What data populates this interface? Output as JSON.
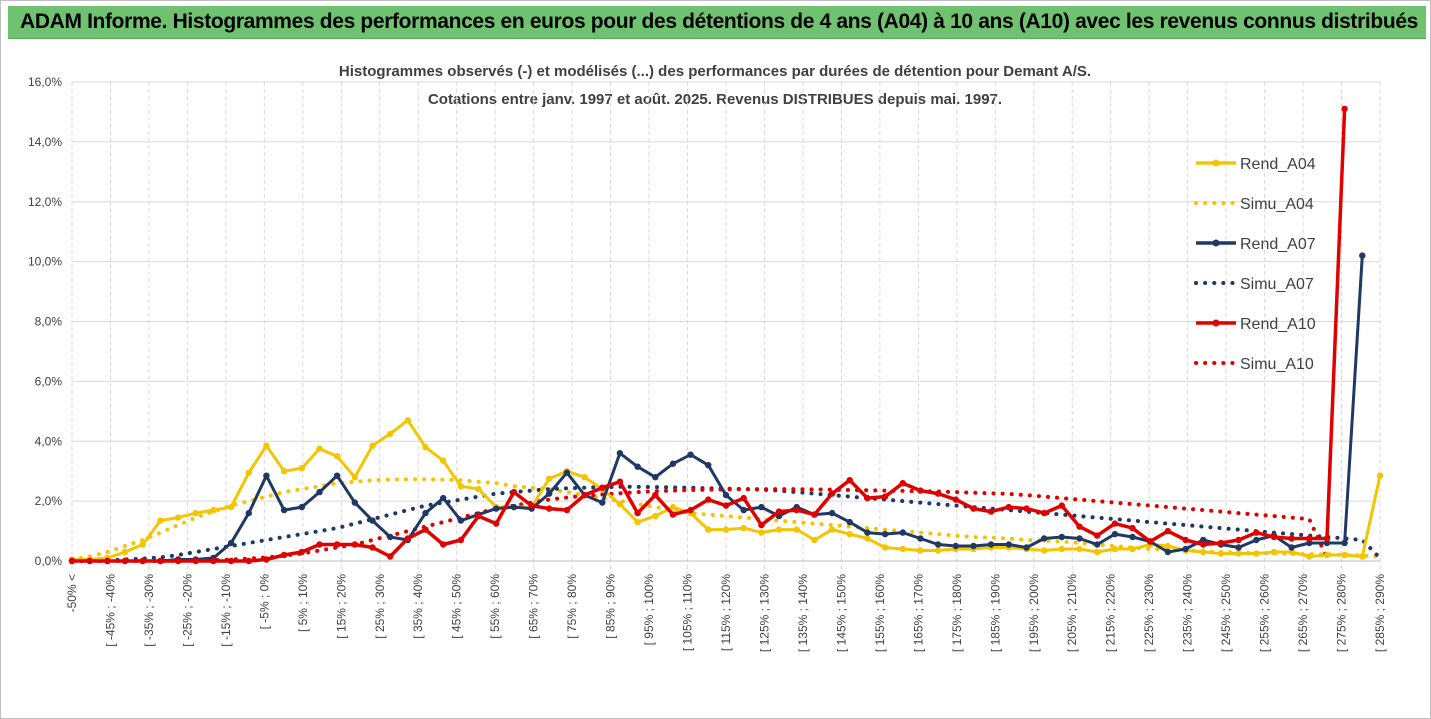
{
  "banner": {
    "title": "ADAM Informe. Histogrammes des performances en euros pour des détentions de 4 ans (A04) à 10 ans (A10) avec les revenus connus distribués"
  },
  "colors": {
    "a04": "#f5c400",
    "a07": "#1f3864",
    "a10": "#e00000",
    "banner": "#6fc26f",
    "grid": "#d0d0d0"
  },
  "chart_data": {
    "type": "line",
    "title": "Histogrammes observés (-) et modélisés (...) des performances par durées de détention pour Demant A/S.",
    "subtitle": "Cotations entre janv. 1997 et août. 2025. Revenus DISTRIBUES depuis mai. 1997.",
    "ylim": [
      0,
      16
    ],
    "yticks": [
      "0,0%",
      "2,0%",
      "4,0%",
      "6,0%",
      "8,0%",
      "10,0%",
      "12,0%",
      "14,0%",
      "16,0%"
    ],
    "xticklabels": [
      "-50% <",
      "[ -45% ; -40%",
      "[ -35% ; -30%",
      "[ -25% ; -20%",
      "[ -15% ; -10%",
      "[ -5% ; 0%",
      "[ 5% ; 10%",
      "[ 15% ; 20%",
      "[ 25% ; 30%",
      "[ 35% ; 40%",
      "[ 45% ; 50%",
      "[ 55% ; 60%",
      "[ 65% ; 70%",
      "[ 75% ; 80%",
      "[ 85% ; 90%",
      "[ 95% ; 100%",
      "[ 105% ; 110%",
      "[ 115% ; 120%",
      "[ 125% ; 130%",
      "[ 135% ; 140%",
      "[ 145% ; 150%",
      "[ 155% ; 160%",
      "[ 165% ; 170%",
      "[ 175% ; 180%",
      "[ 185% ; 190%",
      "[ 195% ; 200%",
      "[ 205% ; 210%",
      "[ 215% ; 220%",
      "[ 225% ; 230%",
      "[ 235% ; 240%",
      "[ 245% ; 250%",
      "[ 255% ; 260%",
      "[ 265% ; 270%",
      "[ 275% ; 280%",
      "[ 285% ; 290%"
    ],
    "grid": true,
    "legend_position": "right",
    "series": [
      {
        "name": "Rend_A04",
        "style": "solid",
        "values": [
          0.05,
          0.05,
          0.1,
          0.3,
          0.55,
          1.35,
          1.45,
          1.6,
          1.7,
          1.8,
          2.95,
          3.85,
          3.0,
          3.1,
          3.75,
          3.5,
          2.8,
          3.85,
          4.25,
          4.7,
          3.8,
          3.35,
          2.5,
          2.4,
          1.8,
          1.8,
          1.8,
          2.75,
          3.0,
          2.8,
          2.4,
          1.9,
          1.3,
          1.5,
          1.8,
          1.6,
          1.05,
          1.05,
          1.1,
          0.95,
          1.05,
          1.05,
          0.7,
          1.05,
          0.9,
          0.75,
          0.45,
          0.4,
          0.35,
          0.35,
          0.4,
          0.4,
          0.45,
          0.45,
          0.4,
          0.35,
          0.4,
          0.4,
          0.3,
          0.4,
          0.4,
          0.55,
          0.5,
          0.35,
          0.3,
          0.25,
          0.25,
          0.25,
          0.3,
          0.3,
          0.15,
          0.2,
          0.2,
          0.15,
          2.85
        ]
      },
      {
        "name": "Simu_A04",
        "style": "dotted",
        "values": [
          0.05,
          0.15,
          0.3,
          0.5,
          0.7,
          0.95,
          1.2,
          1.45,
          1.65,
          1.85,
          2.0,
          2.15,
          2.3,
          2.4,
          2.5,
          2.6,
          2.65,
          2.7,
          2.72,
          2.73,
          2.73,
          2.72,
          2.7,
          2.65,
          2.6,
          2.5,
          2.45,
          2.4,
          2.3,
          2.2,
          2.1,
          2.0,
          1.9,
          1.8,
          1.7,
          1.6,
          1.55,
          1.5,
          1.45,
          1.4,
          1.35,
          1.3,
          1.25,
          1.2,
          1.15,
          1.1,
          1.05,
          1.0,
          0.95,
          0.9,
          0.85,
          0.8,
          0.78,
          0.75,
          0.7,
          0.68,
          0.65,
          0.6,
          0.55,
          0.5,
          0.45,
          0.4,
          0.38,
          0.35,
          0.32,
          0.3,
          0.28,
          0.26,
          0.25,
          0.24,
          0.23,
          0.22,
          0.2,
          0.18,
          0.15
        ]
      },
      {
        "name": "Rend_A07",
        "style": "solid",
        "values": [
          0.0,
          0.0,
          0.0,
          0.0,
          0.0,
          0.0,
          0.05,
          0.05,
          0.1,
          0.6,
          1.6,
          2.85,
          1.7,
          1.8,
          2.3,
          2.85,
          1.95,
          1.35,
          0.8,
          0.7,
          1.6,
          2.1,
          1.35,
          1.55,
          1.75,
          1.8,
          1.75,
          2.25,
          2.95,
          2.2,
          1.95,
          3.6,
          3.15,
          2.8,
          3.25,
          3.55,
          3.2,
          2.2,
          1.7,
          1.8,
          1.5,
          1.8,
          1.55,
          1.6,
          1.3,
          0.95,
          0.9,
          0.95,
          0.75,
          0.55,
          0.5,
          0.5,
          0.55,
          0.55,
          0.45,
          0.75,
          0.8,
          0.75,
          0.55,
          0.9,
          0.8,
          0.65,
          0.3,
          0.4,
          0.7,
          0.55,
          0.45,
          0.7,
          0.85,
          0.45,
          0.6,
          0.6,
          0.6,
          10.2
        ]
      },
      {
        "name": "Simu_A07",
        "style": "dotted",
        "values": [
          0.0,
          0.0,
          0.02,
          0.05,
          0.08,
          0.12,
          0.2,
          0.3,
          0.4,
          0.5,
          0.6,
          0.7,
          0.8,
          0.9,
          1.0,
          1.1,
          1.25,
          1.4,
          1.55,
          1.7,
          1.85,
          1.95,
          2.05,
          2.15,
          2.25,
          2.3,
          2.35,
          2.4,
          2.43,
          2.45,
          2.47,
          2.48,
          2.48,
          2.47,
          2.46,
          2.45,
          2.43,
          2.42,
          2.4,
          2.38,
          2.35,
          2.3,
          2.25,
          2.2,
          2.15,
          2.1,
          2.05,
          2.0,
          1.95,
          1.9,
          1.85,
          1.8,
          1.75,
          1.7,
          1.65,
          1.6,
          1.55,
          1.5,
          1.45,
          1.4,
          1.35,
          1.3,
          1.25,
          1.2,
          1.15,
          1.1,
          1.05,
          1.0,
          0.95,
          0.9,
          0.85,
          0.8,
          0.75,
          0.7,
          0.1
        ]
      },
      {
        "name": "Rend_A10",
        "style": "solid",
        "values": [
          0.0,
          0.0,
          0.0,
          0.0,
          0.0,
          0.0,
          0.0,
          0.0,
          0.0,
          0.0,
          0.0,
          0.05,
          0.2,
          0.3,
          0.55,
          0.55,
          0.55,
          0.45,
          0.15,
          0.75,
          1.05,
          0.55,
          0.7,
          1.5,
          1.25,
          2.3,
          1.85,
          1.75,
          1.7,
          2.2,
          2.45,
          2.65,
          1.6,
          2.2,
          1.55,
          1.7,
          2.05,
          1.85,
          2.1,
          1.2,
          1.65,
          1.7,
          1.55,
          2.25,
          2.7,
          2.1,
          2.15,
          2.6,
          2.35,
          2.25,
          2.05,
          1.75,
          1.65,
          1.8,
          1.75,
          1.6,
          1.85,
          1.15,
          0.85,
          1.25,
          1.1,
          0.65,
          1.0,
          0.7,
          0.55,
          0.6,
          0.7,
          0.95,
          0.8,
          0.75,
          0.75,
          0.75,
          15.1
        ]
      },
      {
        "name": "Simu_A10",
        "style": "dotted",
        "values": [
          0.0,
          0.0,
          0.0,
          0.0,
          0.0,
          0.0,
          0.01,
          0.02,
          0.03,
          0.05,
          0.08,
          0.12,
          0.18,
          0.25,
          0.35,
          0.45,
          0.55,
          0.7,
          0.85,
          1.0,
          1.15,
          1.3,
          1.45,
          1.6,
          1.75,
          1.85,
          1.95,
          2.05,
          2.12,
          2.18,
          2.22,
          2.26,
          2.3,
          2.33,
          2.35,
          2.37,
          2.38,
          2.39,
          2.4,
          2.4,
          2.4,
          2.4,
          2.39,
          2.38,
          2.37,
          2.36,
          2.35,
          2.34,
          2.33,
          2.32,
          2.3,
          2.28,
          2.26,
          2.24,
          2.2,
          2.15,
          2.1,
          2.05,
          2.0,
          1.95,
          1.9,
          1.85,
          1.8,
          1.75,
          1.7,
          1.65,
          1.6,
          1.55,
          1.5,
          1.45,
          1.4,
          0.1
        ]
      }
    ]
  }
}
